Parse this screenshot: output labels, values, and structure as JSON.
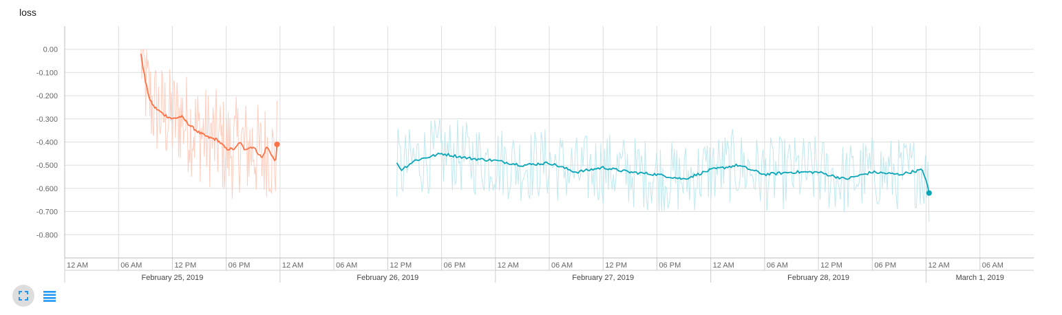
{
  "chart_data": {
    "type": "line",
    "title": "loss",
    "ylim": [
      -0.9,
      0.1
    ],
    "yticks": [
      0.0,
      -0.1,
      -0.2,
      -0.3,
      -0.4,
      -0.5,
      -0.6,
      -0.7,
      -0.8
    ],
    "ytick_labels": [
      "0.00",
      "-0.100",
      "-0.200",
      "-0.300",
      "-0.400",
      "-0.500",
      "-0.600",
      "-0.700",
      "-0.800"
    ],
    "x_axis": {
      "type": "time",
      "range": [
        "2019-02-25T00:00",
        "2019-03-01T12:00"
      ],
      "tick_labels": [
        "12 AM",
        "06 AM",
        "12 PM",
        "06 PM",
        "12 AM",
        "06 AM",
        "12 PM",
        "06 PM",
        "12 AM",
        "06 AM",
        "12 PM",
        "06 PM",
        "12 AM",
        "06 AM",
        "12 PM",
        "06 PM",
        "12 AM",
        "06 AM"
      ],
      "date_labels": [
        "February 25, 2019",
        "February 26, 2019",
        "February 27, 2019",
        "February 28, 2019",
        "March 1, 2019"
      ]
    },
    "grid": true,
    "series": [
      {
        "color": "#ff7043",
        "raw_color": "#ffcdbe",
        "smoothed": [
          {
            "x": "2019-02-25T08:30",
            "y": -0.02
          },
          {
            "x": "2019-02-25T09:00",
            "y": -0.14
          },
          {
            "x": "2019-02-25T09:30",
            "y": -0.22
          },
          {
            "x": "2019-02-25T10:00",
            "y": -0.25
          },
          {
            "x": "2019-02-25T11:00",
            "y": -0.28
          },
          {
            "x": "2019-02-25T12:00",
            "y": -0.3
          },
          {
            "x": "2019-02-25T13:00",
            "y": -0.29
          },
          {
            "x": "2019-02-25T14:00",
            "y": -0.33
          },
          {
            "x": "2019-02-25T15:00",
            "y": -0.36
          },
          {
            "x": "2019-02-25T16:00",
            "y": -0.38
          },
          {
            "x": "2019-02-25T17:00",
            "y": -0.39
          },
          {
            "x": "2019-02-25T18:00",
            "y": -0.43
          },
          {
            "x": "2019-02-25T19:00",
            "y": -0.43
          },
          {
            "x": "2019-02-25T19:30",
            "y": -0.4
          },
          {
            "x": "2019-02-25T20:00",
            "y": -0.43
          },
          {
            "x": "2019-02-25T21:00",
            "y": -0.42
          },
          {
            "x": "2019-02-25T22:00",
            "y": -0.47
          },
          {
            "x": "2019-02-25T22:30",
            "y": -0.42
          },
          {
            "x": "2019-02-25T23:00",
            "y": -0.45
          },
          {
            "x": "2019-02-25T23:30",
            "y": -0.49
          },
          {
            "x": "2019-02-25T23:40",
            "y": -0.41
          }
        ]
      },
      {
        "color": "#0aa5b6",
        "raw_color": "#bfe8ee",
        "smoothed": [
          {
            "x": "2019-02-26T13:00",
            "y": -0.49
          },
          {
            "x": "2019-02-26T13:30",
            "y": -0.52
          },
          {
            "x": "2019-02-26T15:00",
            "y": -0.48
          },
          {
            "x": "2019-02-26T18:00",
            "y": -0.45
          },
          {
            "x": "2019-02-26T21:00",
            "y": -0.47
          },
          {
            "x": "2019-02-27T00:00",
            "y": -0.48
          },
          {
            "x": "2019-02-27T03:00",
            "y": -0.5
          },
          {
            "x": "2019-02-27T06:00",
            "y": -0.49
          },
          {
            "x": "2019-02-27T09:00",
            "y": -0.53
          },
          {
            "x": "2019-02-27T12:00",
            "y": -0.51
          },
          {
            "x": "2019-02-27T15:00",
            "y": -0.53
          },
          {
            "x": "2019-02-27T18:00",
            "y": -0.54
          },
          {
            "x": "2019-02-27T21:00",
            "y": -0.56
          },
          {
            "x": "2019-02-28T00:00",
            "y": -0.52
          },
          {
            "x": "2019-02-28T03:00",
            "y": -0.5
          },
          {
            "x": "2019-02-28T06:00",
            "y": -0.54
          },
          {
            "x": "2019-02-28T09:00",
            "y": -0.53
          },
          {
            "x": "2019-02-28T12:00",
            "y": -0.53
          },
          {
            "x": "2019-02-28T15:00",
            "y": -0.56
          },
          {
            "x": "2019-02-28T18:00",
            "y": -0.53
          },
          {
            "x": "2019-02-28T21:00",
            "y": -0.54
          },
          {
            "x": "2019-02-28T23:30",
            "y": -0.52
          },
          {
            "x": "2019-03-01T00:00",
            "y": -0.56
          },
          {
            "x": "2019-03-01T00:20",
            "y": -0.62
          }
        ]
      }
    ]
  },
  "toolbar": {
    "fullscreen_icon": "fullscreen-icon",
    "data_table_icon": "list-icon",
    "icon_color": "#2196f3"
  }
}
